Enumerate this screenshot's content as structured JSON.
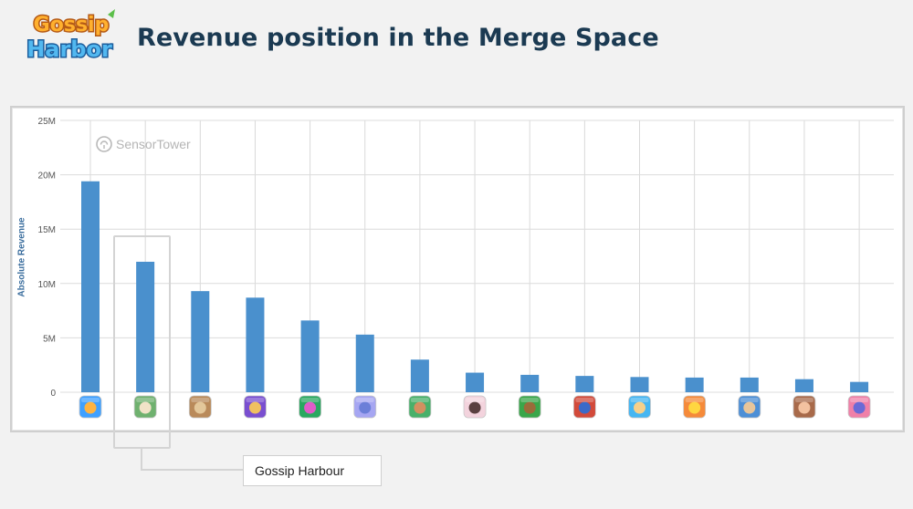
{
  "header": {
    "title": "Revenue position in the Merge Space",
    "logo_text_line1": "Gossip",
    "logo_text_line2": "Harbor"
  },
  "watermark": "SensorTower",
  "callout": {
    "label": "Gossip Harbour"
  },
  "colors": {
    "bar": "#4a90cd",
    "title": "#1b3a52",
    "axis_label": "#3b6e9e"
  },
  "chart_data": {
    "type": "bar",
    "title": "",
    "xlabel": "",
    "ylabel": "Absolute Revenue",
    "ylim": [
      0,
      25000000
    ],
    "yticks": [
      {
        "value": 0,
        "label": "0"
      },
      {
        "value": 5000000,
        "label": "5M"
      },
      {
        "value": 10000000,
        "label": "10M"
      },
      {
        "value": 15000000,
        "label": "15M"
      },
      {
        "value": 20000000,
        "label": "20M"
      },
      {
        "value": 25000000,
        "label": "25M"
      }
    ],
    "grid": true,
    "categories": [
      "",
      "Gossip Harbour",
      "",
      "",
      "",
      "",
      "",
      "",
      "",
      "",
      "",
      "",
      "",
      "",
      ""
    ],
    "values": [
      19400000,
      12000000,
      9300000,
      8700000,
      6600000,
      5300000,
      3000000,
      1800000,
      1600000,
      1500000,
      1400000,
      1350000,
      1350000,
      1200000,
      950000
    ],
    "app_icons": [
      {
        "icon": "app-icon-1",
        "colors": [
          "#3fa0ff",
          "#ffb340"
        ]
      },
      {
        "icon": "app-icon-gossip-harbour",
        "colors": [
          "#6fb16f",
          "#f1e3c8"
        ]
      },
      {
        "icon": "app-icon-3",
        "colors": [
          "#b98a5a",
          "#e3c79a"
        ]
      },
      {
        "icon": "app-icon-4",
        "colors": [
          "#7a4fd0",
          "#f0c060"
        ]
      },
      {
        "icon": "app-icon-5",
        "colors": [
          "#2aa860",
          "#e05cc8"
        ]
      },
      {
        "icon": "app-icon-6",
        "colors": [
          "#a6a6f2",
          "#6b7fd8"
        ]
      },
      {
        "icon": "app-icon-7",
        "colors": [
          "#48b06a",
          "#d29060"
        ]
      },
      {
        "icon": "app-icon-8",
        "colors": [
          "#f3d3dd",
          "#5a4040"
        ]
      },
      {
        "icon": "app-icon-9",
        "colors": [
          "#3aa64a",
          "#9a6b3a"
        ]
      },
      {
        "icon": "app-icon-10",
        "colors": [
          "#d24a3a",
          "#3b6ac8"
        ]
      },
      {
        "icon": "app-icon-11",
        "colors": [
          "#46b6f2",
          "#f6d08a"
        ]
      },
      {
        "icon": "app-icon-12",
        "colors": [
          "#f58a3a",
          "#ffd640"
        ]
      },
      {
        "icon": "app-icon-13",
        "colors": [
          "#4d8fd6",
          "#e8c59a"
        ]
      },
      {
        "icon": "app-icon-14",
        "colors": [
          "#a86a4a",
          "#f3c2a0"
        ]
      },
      {
        "icon": "app-icon-15",
        "colors": [
          "#f080a8",
          "#6a6ad6"
        ]
      }
    ]
  }
}
